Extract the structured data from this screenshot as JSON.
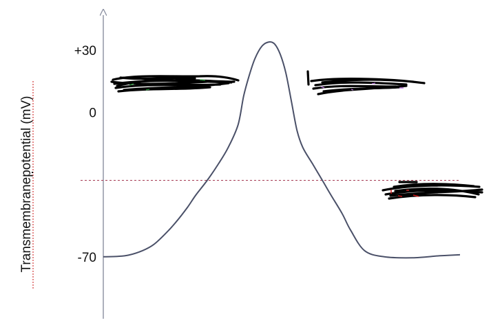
{
  "chart_data": {
    "type": "line",
    "title": "",
    "xlabel": "",
    "ylabel": "Transmembranepotential (mV)",
    "y_ticks": [
      {
        "value": 30,
        "label": "+30"
      },
      {
        "value": 0,
        "label": "0"
      },
      {
        "value": -70,
        "label": "-70"
      }
    ],
    "ylim": [
      -100,
      47
    ],
    "threshold_line": {
      "y": -33,
      "style": "dashed"
    },
    "series": [
      {
        "values": [
          {
            "x": 0,
            "y": -70
          },
          {
            "x": 5,
            "y": -69.8
          },
          {
            "x": 9,
            "y": -69.2
          },
          {
            "x": 14,
            "y": -67
          },
          {
            "x": 18,
            "y": -64
          },
          {
            "x": 22,
            "y": -59
          },
          {
            "x": 26,
            "y": -53
          },
          {
            "x": 30,
            "y": -46
          },
          {
            "x": 33,
            "y": -40
          },
          {
            "x": 37,
            "y": -33
          },
          {
            "x": 41,
            "y": -25
          },
          {
            "x": 44.5,
            "y": -17
          },
          {
            "x": 48,
            "y": -6
          },
          {
            "x": 50,
            "y": 8
          },
          {
            "x": 52,
            "y": 18
          },
          {
            "x": 54,
            "y": 26
          },
          {
            "x": 56.5,
            "y": 32
          },
          {
            "x": 59,
            "y": 34
          },
          {
            "x": 61,
            "y": 33
          },
          {
            "x": 63,
            "y": 28
          },
          {
            "x": 65,
            "y": 19
          },
          {
            "x": 67,
            "y": 5
          },
          {
            "x": 69,
            "y": -9
          },
          {
            "x": 71,
            "y": -17
          },
          {
            "x": 74.5,
            "y": -25
          },
          {
            "x": 78,
            "y": -33
          },
          {
            "x": 81,
            "y": -40
          },
          {
            "x": 85,
            "y": -49
          },
          {
            "x": 88,
            "y": -57
          },
          {
            "x": 93,
            "y": -67
          },
          {
            "x": 100,
            "y": -70
          },
          {
            "x": 110,
            "y": -70.5
          },
          {
            "x": 120,
            "y": -69.5
          },
          {
            "x": 127,
            "y": -69
          }
        ]
      }
    ],
    "grid": false,
    "colors": {
      "axis": "#8a8fa0",
      "curve": "#4a5068",
      "threshold": "#a3374f",
      "scribble": "#000000",
      "scribble_accent_green": "#2a9a3a",
      "scribble_accent_purple": "#b06fd0",
      "scribble_accent_red": "#cc1a1a"
    }
  }
}
